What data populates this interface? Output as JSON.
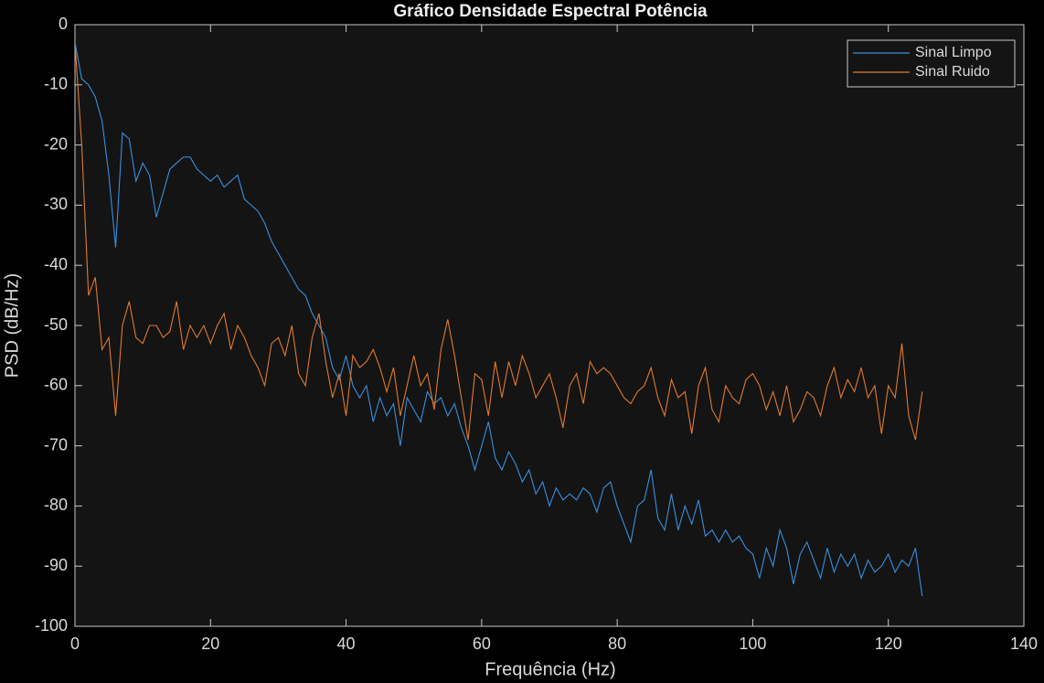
{
  "chart_data": {
    "type": "line",
    "title": "Gráfico Densidade Espectral Potência",
    "xlabel": "Frequência (Hz)",
    "ylabel": "PSD (dB/Hz)",
    "x": [
      0,
      1,
      2,
      3,
      4,
      5,
      6,
      7,
      8,
      9,
      10,
      11,
      12,
      13,
      14,
      15,
      16,
      17,
      18,
      19,
      20,
      21,
      22,
      23,
      24,
      25,
      26,
      27,
      28,
      29,
      30,
      31,
      32,
      33,
      34,
      35,
      36,
      37,
      38,
      39,
      40,
      41,
      42,
      43,
      44,
      45,
      46,
      47,
      48,
      49,
      50,
      51,
      52,
      53,
      54,
      55,
      56,
      57,
      58,
      59,
      60,
      61,
      62,
      63,
      64,
      65,
      66,
      67,
      68,
      69,
      70,
      71,
      72,
      73,
      74,
      75,
      76,
      77,
      78,
      79,
      80,
      81,
      82,
      83,
      84,
      85,
      86,
      87,
      88,
      89,
      90,
      91,
      92,
      93,
      94,
      95,
      96,
      97,
      98,
      99,
      100,
      101,
      102,
      103,
      104,
      105,
      106,
      107,
      108,
      109,
      110,
      111,
      112,
      113,
      114,
      115,
      116,
      117,
      118,
      119,
      120,
      121,
      122,
      123,
      124,
      125
    ],
    "series": [
      {
        "name": "Sinal Limpo",
        "color": "#3a8fde",
        "values": [
          -3,
          -9,
          -10,
          -12,
          -16,
          -25,
          -37,
          -18,
          -19,
          -26,
          -23,
          -25,
          -32,
          -28,
          -24,
          -23,
          -22,
          -22,
          -24,
          -25,
          -26,
          -25,
          -27,
          -26,
          -25,
          -29,
          -30,
          -31,
          -33,
          -36,
          -38,
          -40,
          -42,
          -44,
          -45,
          -48,
          -50,
          -52,
          -57,
          -59,
          -55,
          -60,
          -62,
          -60,
          -66,
          -62,
          -65,
          -63,
          -70,
          -62,
          -64,
          -66,
          -61,
          -63,
          -62,
          -65,
          -63,
          -67,
          -70,
          -74,
          -70,
          -66,
          -72,
          -74,
          -71,
          -73,
          -76,
          -74,
          -78,
          -76,
          -80,
          -77,
          -79,
          -78,
          -79,
          -77,
          -78,
          -81,
          -77,
          -76,
          -80,
          -83,
          -86,
          -80,
          -79,
          -74,
          -82,
          -84,
          -78,
          -84,
          -80,
          -83,
          -79,
          -85,
          -84,
          -86,
          -84,
          -86,
          -85,
          -87,
          -88,
          -92,
          -87,
          -90,
          -84,
          -87,
          -93,
          -88,
          -86,
          -89,
          -92,
          -87,
          -91,
          -88,
          -90,
          -88,
          -92,
          -89,
          -91,
          -90,
          -88,
          -91,
          -89,
          -90,
          -87,
          -95
        ]
      },
      {
        "name": "Sinal Ruido",
        "color": "#e07a2e",
        "values": [
          -3,
          -20,
          -45,
          -42,
          -54,
          -52,
          -65,
          -50,
          -46,
          -52,
          -53,
          -50,
          -50,
          -52,
          -51,
          -46,
          -54,
          -50,
          -52,
          -50,
          -53,
          -50,
          -48,
          -54,
          -50,
          -52,
          -55,
          -57,
          -60,
          -53,
          -52,
          -55,
          -50,
          -58,
          -60,
          -52,
          -48,
          -56,
          -62,
          -58,
          -65,
          -55,
          -57,
          -56,
          -54,
          -57,
          -61,
          -57,
          -65,
          -60,
          -55,
          -60,
          -58,
          -64,
          -54,
          -49,
          -55,
          -62,
          -69,
          -58,
          -59,
          -65,
          -56,
          -62,
          -56,
          -60,
          -55,
          -58,
          -62,
          -60,
          -58,
          -62,
          -67,
          -60,
          -58,
          -63,
          -56,
          -58,
          -57,
          -58,
          -60,
          -62,
          -63,
          -61,
          -60,
          -57,
          -62,
          -65,
          -59,
          -62,
          -61,
          -68,
          -60,
          -57,
          -64,
          -66,
          -60,
          -62,
          -63,
          -59,
          -58,
          -60,
          -64,
          -61,
          -65,
          -60,
          -66,
          -64,
          -61,
          -62,
          -65,
          -60,
          -57,
          -62,
          -59,
          -61,
          -57,
          -62,
          -60,
          -68,
          -60,
          -62,
          -53,
          -65,
          -69,
          -61
        ]
      }
    ],
    "xlim": [
      0,
      140
    ],
    "xticks": [
      0,
      20,
      40,
      60,
      80,
      100,
      120,
      140
    ],
    "ylim": [
      -100,
      0
    ],
    "yticks": [
      0,
      -10,
      -20,
      -30,
      -40,
      -50,
      -60,
      -70,
      -80,
      -90,
      -100
    ],
    "legend": "upper right"
  }
}
